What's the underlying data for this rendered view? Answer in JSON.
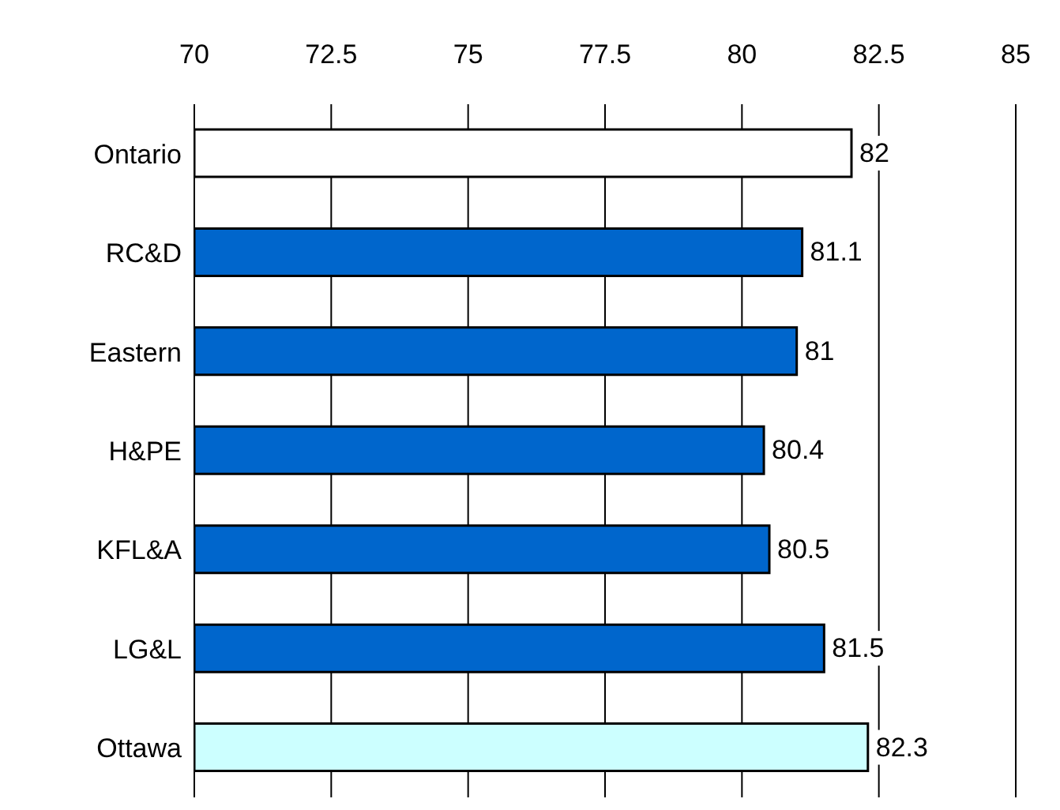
{
  "chart_data": {
    "type": "bar",
    "orientation": "horizontal",
    "categories": [
      "Ontario",
      "RC&D",
      "Eastern",
      "H&PE",
      "KFL&A",
      "LG&L",
      "Ottawa"
    ],
    "values": [
      82,
      81.1,
      81,
      80.4,
      80.5,
      81.5,
      82.3
    ],
    "colors": [
      "#ffffff",
      "#0066cc",
      "#0066cc",
      "#0066cc",
      "#0066cc",
      "#0066cc",
      "#ccffff"
    ],
    "xlim": [
      70,
      85
    ],
    "xticks": [
      70,
      72.5,
      75,
      77.5,
      80,
      82.5,
      85
    ],
    "grid": "x",
    "data_labels": true
  }
}
